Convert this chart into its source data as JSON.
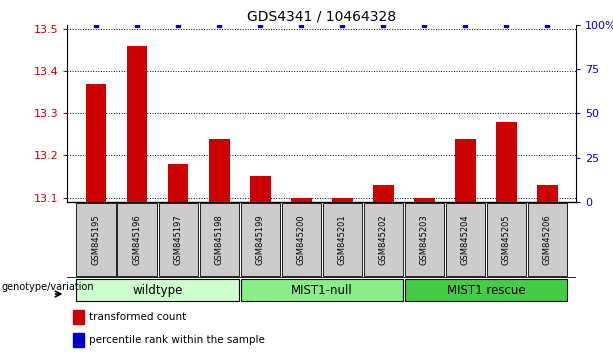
{
  "title": "GDS4341 / 10464328",
  "samples": [
    "GSM845195",
    "GSM845196",
    "GSM845197",
    "GSM845198",
    "GSM845199",
    "GSM845200",
    "GSM845201",
    "GSM845202",
    "GSM845203",
    "GSM845204",
    "GSM845205",
    "GSM845206"
  ],
  "transformed_counts": [
    13.37,
    13.46,
    13.18,
    13.24,
    13.15,
    13.1,
    13.1,
    13.13,
    13.1,
    13.24,
    13.28,
    13.13
  ],
  "percentile_ranks": [
    100,
    100,
    100,
    100,
    100,
    100,
    100,
    100,
    100,
    100,
    100,
    100
  ],
  "ylim_left": [
    13.09,
    13.51
  ],
  "ylim_right": [
    0,
    100
  ],
  "yticks_left": [
    13.1,
    13.2,
    13.3,
    13.4,
    13.5
  ],
  "yticks_right": [
    0,
    25,
    50,
    75,
    100
  ],
  "ytick_labels_right": [
    "0",
    "25",
    "50",
    "75",
    "100%"
  ],
  "groups": [
    {
      "label": "wildtype",
      "start": 0,
      "end": 3,
      "color": "#ccffcc"
    },
    {
      "label": "MIST1-null",
      "start": 4,
      "end": 7,
      "color": "#88ee88"
    },
    {
      "label": "MIST1 rescue",
      "start": 8,
      "end": 11,
      "color": "#44cc44"
    }
  ],
  "bar_color": "#cc0000",
  "dot_color": "#0000cc",
  "bar_width": 0.5,
  "background_color": "#ffffff",
  "sample_box_color": "#cccccc",
  "legend_items": [
    {
      "color": "#cc0000",
      "label": "transformed count"
    },
    {
      "color": "#0000cc",
      "label": "percentile rank within the sample"
    }
  ],
  "genotype_label": "genotype/variation",
  "title_fontsize": 10,
  "tick_fontsize": 8,
  "label_fontsize": 7.5
}
